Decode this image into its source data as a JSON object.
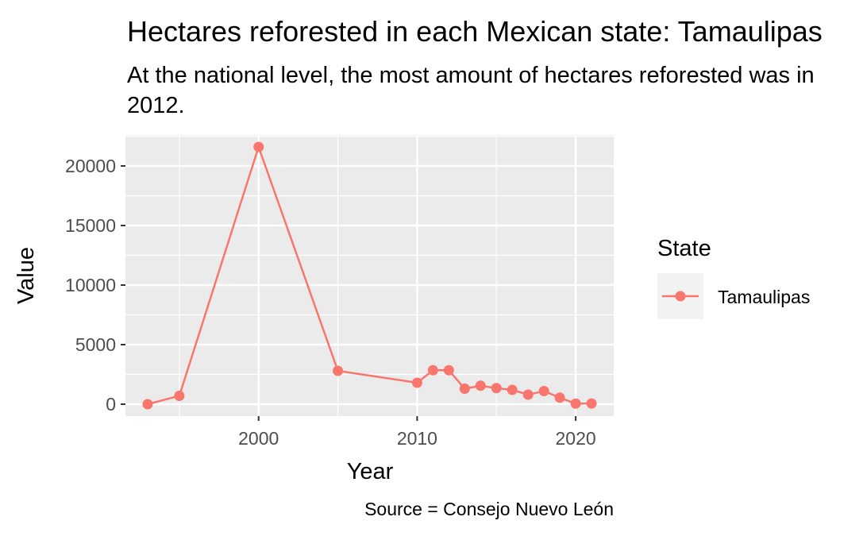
{
  "chart_data": {
    "type": "line",
    "title": "Hectares reforested in each Mexican state: Tamaulipas",
    "subtitle_lines": [
      "At the national level, the most amount of hectares reforested was in",
      "2012."
    ],
    "xlabel": "Year",
    "ylabel": "Value",
    "caption": "Source = Consejo Nuevo León",
    "legend_title": "State",
    "legend_position": "right",
    "grid": true,
    "xlim": [
      1991.6,
      2022.4
    ],
    "ylim": [
      -1000,
      22600
    ],
    "x_ticks": [
      2000,
      2010,
      2020
    ],
    "y_ticks": [
      0,
      5000,
      10000,
      15000,
      20000
    ],
    "series": [
      {
        "name": "Tamaulipas",
        "color": "#F8766D",
        "x": [
          1993,
          1995,
          2000,
          2005,
          2010,
          2011,
          2012,
          2013,
          2014,
          2015,
          2016,
          2017,
          2018,
          2019,
          2020,
          2021
        ],
        "values": [
          0,
          700,
          21600,
          2800,
          1800,
          2850,
          2850,
          1300,
          1550,
          1350,
          1200,
          800,
          1100,
          550,
          50,
          60
        ]
      }
    ]
  }
}
